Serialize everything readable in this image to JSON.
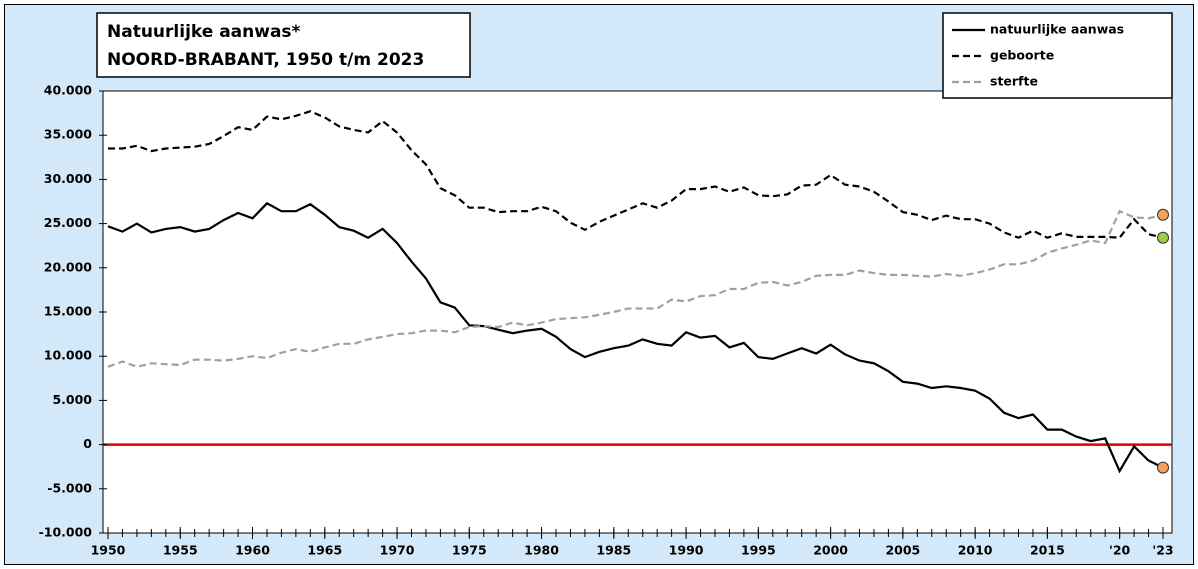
{
  "chart_data": {
    "type": "line",
    "title": "Natuurlijke aanwas*",
    "subtitle": "NOORD-BRABANT,  1950 t/m 2023",
    "x": [
      1950,
      1951,
      1952,
      1953,
      1954,
      1955,
      1956,
      1957,
      1958,
      1959,
      1960,
      1961,
      1962,
      1963,
      1964,
      1965,
      1966,
      1967,
      1968,
      1969,
      1970,
      1971,
      1972,
      1973,
      1974,
      1975,
      1976,
      1977,
      1978,
      1979,
      1980,
      1981,
      1982,
      1983,
      1984,
      1985,
      1986,
      1987,
      1988,
      1989,
      1990,
      1991,
      1992,
      1993,
      1994,
      1995,
      1996,
      1997,
      1998,
      1999,
      2000,
      2001,
      2002,
      2003,
      2004,
      2005,
      2006,
      2007,
      2008,
      2009,
      2010,
      2011,
      2012,
      2013,
      2014,
      2015,
      2016,
      2017,
      2018,
      2019,
      2020,
      2021,
      2022,
      2023
    ],
    "series": [
      {
        "name": "natuurlijke aanwas",
        "color": "#000000",
        "style": "solid",
        "end_marker_color": "#f4a15c",
        "values": [
          24700,
          24100,
          25000,
          24000,
          24400,
          24600,
          24100,
          24400,
          25400,
          26200,
          25600,
          27300,
          26400,
          26400,
          27200,
          26000,
          24600,
          24200,
          23400,
          24400,
          22800,
          20700,
          18800,
          16100,
          15500,
          13500,
          13400,
          13000,
          12600,
          12900,
          13100,
          12200,
          10800,
          9900,
          10500,
          10900,
          11200,
          11900,
          11400,
          11200,
          12700,
          12100,
          12300,
          11000,
          11500,
          9900,
          9700,
          10300,
          10900,
          10300,
          11300,
          10200,
          9500,
          9200,
          8300,
          7100,
          6900,
          6400,
          6600,
          6400,
          6100,
          5200,
          3600,
          3000,
          3400,
          1700,
          1700,
          900,
          400,
          700,
          -3000,
          -200,
          -1800,
          -2600
        ]
      },
      {
        "name": "geboorte",
        "color": "#000000",
        "style": "dashed",
        "end_marker_color": "#9ccc4c",
        "values": [
          33500,
          33500,
          33800,
          33200,
          33500,
          33600,
          33700,
          34000,
          34900,
          35900,
          35600,
          37100,
          36800,
          37200,
          37700,
          37000,
          36000,
          35600,
          35300,
          36600,
          35300,
          33300,
          31700,
          29000,
          28200,
          26800,
          26800,
          26300,
          26400,
          26400,
          26900,
          26400,
          25100,
          24300,
          25200,
          25900,
          26600,
          27300,
          26800,
          27600,
          28900,
          28900,
          29200,
          28600,
          29100,
          28200,
          28100,
          28300,
          29300,
          29400,
          30500,
          29400,
          29200,
          28600,
          27500,
          26300,
          26000,
          25400,
          25900,
          25500,
          25500,
          25000,
          24000,
          23400,
          24200,
          23400,
          23900,
          23500,
          23500,
          23500,
          23400,
          25500,
          23800,
          23400
        ]
      },
      {
        "name": "sterfte",
        "color": "#a0a0a0",
        "style": "dashed",
        "end_marker_color": "#f4a15c",
        "values": [
          8800,
          9400,
          8800,
          9200,
          9100,
          9000,
          9600,
          9600,
          9500,
          9700,
          10000,
          9800,
          10400,
          10800,
          10500,
          11000,
          11400,
          11400,
          11900,
          12200,
          12500,
          12600,
          12900,
          12900,
          12700,
          13300,
          13400,
          13300,
          13800,
          13500,
          13800,
          14200,
          14300,
          14400,
          14700,
          15000,
          15400,
          15400,
          15400,
          16400,
          16200,
          16800,
          16900,
          17600,
          17600,
          18300,
          18400,
          18000,
          18400,
          19100,
          19200,
          19200,
          19700,
          19400,
          19200,
          19200,
          19100,
          19000,
          19300,
          19100,
          19400,
          19800,
          20400,
          20400,
          20800,
          21700,
          22200,
          22600,
          23100,
          22800,
          26400,
          25700,
          25600,
          26000
        ]
      }
    ],
    "xlim": [
      1950,
      2023
    ],
    "xticks": [
      1950,
      1955,
      1960,
      1965,
      1970,
      1975,
      1980,
      1985,
      1990,
      1995,
      2000,
      2005,
      2010,
      2015,
      {
        "value": 2020,
        "label": "'20"
      },
      {
        "value": 2023,
        "label": "'23"
      }
    ],
    "ylim": [
      -10000,
      40000
    ],
    "yticks": [
      {
        "value": -10000,
        "label": "-10.000"
      },
      {
        "value": -5000,
        "label": "-5.000"
      },
      0,
      {
        "value": 5000,
        "label": "5.000"
      },
      {
        "value": 10000,
        "label": "10.000"
      },
      {
        "value": 15000,
        "label": "15.000"
      },
      {
        "value": 20000,
        "label": "20.000"
      },
      {
        "value": 25000,
        "label": "25.000"
      },
      {
        "value": 30000,
        "label": "30.000"
      },
      {
        "value": 35000,
        "label": "35.000"
      },
      {
        "value": 40000,
        "label": "40.000"
      }
    ],
    "grid": false,
    "zero_line_color": "#e00000",
    "legend": "top-right",
    "background_color": "#d3e9f9"
  }
}
